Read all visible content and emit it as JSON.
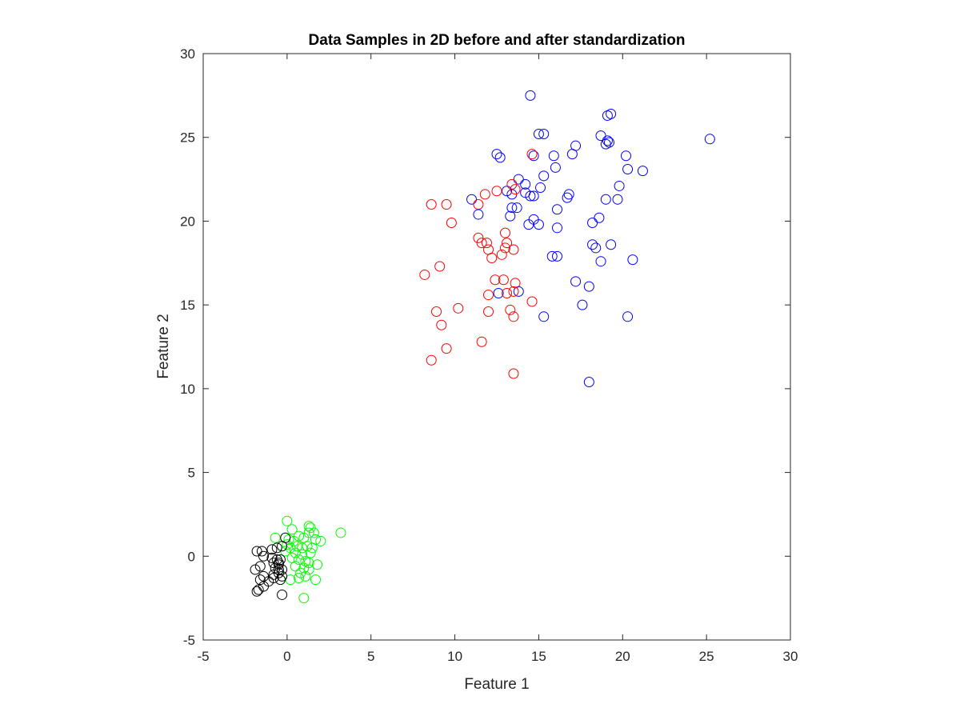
{
  "chart_data": {
    "type": "scatter",
    "title": "Data Samples in 2D before and after standardization",
    "xlabel": "Feature 1",
    "ylabel": "Feature 2",
    "xlim": [
      -5,
      30
    ],
    "ylim": [
      -5,
      30
    ],
    "xticks": [
      -5,
      0,
      5,
      10,
      15,
      20,
      25,
      30
    ],
    "yticks": [
      -5,
      0,
      5,
      10,
      15,
      20,
      25,
      30
    ],
    "grid": false,
    "legend": "none",
    "marker": "open-circle",
    "series": [
      {
        "color": "#0000ff",
        "points": [
          [
            14.5,
            27.5
          ],
          [
            12.5,
            24.0
          ],
          [
            12.7,
            23.8
          ],
          [
            14.7,
            23.9
          ],
          [
            15.0,
            25.2
          ],
          [
            15.3,
            25.2
          ],
          [
            15.9,
            23.9
          ],
          [
            16.0,
            23.2
          ],
          [
            15.3,
            22.7
          ],
          [
            13.8,
            22.5
          ],
          [
            13.1,
            21.8
          ],
          [
            13.4,
            21.6
          ],
          [
            14.2,
            22.2
          ],
          [
            14.2,
            21.7
          ],
          [
            14.5,
            21.5
          ],
          [
            14.7,
            21.5
          ],
          [
            15.1,
            22.0
          ],
          [
            16.7,
            21.4
          ],
          [
            16.8,
            21.6
          ],
          [
            11.0,
            21.3
          ],
          [
            11.4,
            20.4
          ],
          [
            13.7,
            20.8
          ],
          [
            13.4,
            20.8
          ],
          [
            13.3,
            20.3
          ],
          [
            14.7,
            20.1
          ],
          [
            14.4,
            19.8
          ],
          [
            15.0,
            19.8
          ],
          [
            16.1,
            20.7
          ],
          [
            16.1,
            19.6
          ],
          [
            15.8,
            17.9
          ],
          [
            16.1,
            17.9
          ],
          [
            13.8,
            15.8
          ],
          [
            12.6,
            15.7
          ],
          [
            15.3,
            14.3
          ],
          [
            17.2,
            16.4
          ],
          [
            17.6,
            15.0
          ],
          [
            18.0,
            16.1
          ],
          [
            17.0,
            24.0
          ],
          [
            17.2,
            24.5
          ],
          [
            18.7,
            25.1
          ],
          [
            19.2,
            24.7
          ],
          [
            19.1,
            24.8
          ],
          [
            19.0,
            24.6
          ],
          [
            19.1,
            26.3
          ],
          [
            19.3,
            26.4
          ],
          [
            20.2,
            23.9
          ],
          [
            20.3,
            23.1
          ],
          [
            21.2,
            23.0
          ],
          [
            19.8,
            22.1
          ],
          [
            19.0,
            21.3
          ],
          [
            19.7,
            21.3
          ],
          [
            18.6,
            20.2
          ],
          [
            18.2,
            19.9
          ],
          [
            18.2,
            18.6
          ],
          [
            18.4,
            18.4
          ],
          [
            19.3,
            18.6
          ],
          [
            18.7,
            17.6
          ],
          [
            20.6,
            17.7
          ],
          [
            20.3,
            14.3
          ],
          [
            18.0,
            10.4
          ],
          [
            25.2,
            24.9
          ]
        ]
      },
      {
        "color": "#ff0000",
        "points": [
          [
            8.6,
            21.0
          ],
          [
            9.5,
            21.0
          ],
          [
            9.8,
            19.9
          ],
          [
            11.4,
            21.0
          ],
          [
            11.8,
            21.6
          ],
          [
            12.5,
            21.8
          ],
          [
            13.4,
            22.2
          ],
          [
            14.6,
            24.0
          ],
          [
            13.6,
            21.9
          ],
          [
            11.4,
            19.0
          ],
          [
            11.6,
            18.7
          ],
          [
            11.9,
            18.7
          ],
          [
            12.0,
            18.3
          ],
          [
            12.2,
            17.8
          ],
          [
            12.8,
            18.0
          ],
          [
            13.0,
            19.3
          ],
          [
            13.1,
            18.7
          ],
          [
            13.0,
            18.4
          ],
          [
            13.5,
            18.3
          ],
          [
            9.1,
            17.3
          ],
          [
            8.2,
            16.8
          ],
          [
            12.4,
            16.5
          ],
          [
            12.9,
            16.5
          ],
          [
            13.6,
            16.3
          ],
          [
            12.0,
            15.6
          ],
          [
            13.1,
            15.7
          ],
          [
            13.5,
            15.8
          ],
          [
            14.6,
            15.2
          ],
          [
            10.2,
            14.8
          ],
          [
            8.9,
            14.6
          ],
          [
            12.0,
            14.6
          ],
          [
            13.3,
            14.7
          ],
          [
            13.5,
            14.3
          ],
          [
            9.2,
            13.8
          ],
          [
            9.5,
            12.4
          ],
          [
            11.6,
            12.8
          ],
          [
            8.6,
            11.7
          ],
          [
            13.5,
            10.9
          ]
        ]
      },
      {
        "color": "#00ff00",
        "points": [
          [
            0.0,
            2.1
          ],
          [
            0.3,
            1.6
          ],
          [
            1.3,
            1.8
          ],
          [
            1.4,
            1.7
          ],
          [
            1.3,
            1.4
          ],
          [
            1.6,
            1.4
          ],
          [
            3.2,
            1.4
          ],
          [
            0.7,
            1.2
          ],
          [
            1.0,
            1.1
          ],
          [
            1.7,
            1.0
          ],
          [
            2.0,
            0.9
          ],
          [
            -0.7,
            1.1
          ],
          [
            0.1,
            1.0
          ],
          [
            0.4,
            0.9
          ],
          [
            0.2,
            0.5
          ],
          [
            0.6,
            0.6
          ],
          [
            0.9,
            0.5
          ],
          [
            1.2,
            0.6
          ],
          [
            1.5,
            0.5
          ],
          [
            0.5,
            0.2
          ],
          [
            0.9,
            0.1
          ],
          [
            1.4,
            0.2
          ],
          [
            0.3,
            -0.1
          ],
          [
            0.7,
            -0.2
          ],
          [
            1.1,
            -0.3
          ],
          [
            1.3,
            -0.4
          ],
          [
            1.8,
            -0.5
          ],
          [
            0.5,
            -0.6
          ],
          [
            1.0,
            -0.7
          ],
          [
            1.3,
            -0.8
          ],
          [
            0.8,
            -1.0
          ],
          [
            1.1,
            -1.2
          ],
          [
            0.2,
            -1.4
          ],
          [
            0.7,
            -1.3
          ],
          [
            1.7,
            -1.4
          ],
          [
            1.0,
            -2.5
          ],
          [
            -0.1,
            0.3
          ],
          [
            0.0,
            0.7
          ]
        ]
      },
      {
        "color": "#000000",
        "points": [
          [
            -0.1,
            1.1
          ],
          [
            -0.6,
            0.5
          ],
          [
            -0.9,
            0.4
          ],
          [
            -1.8,
            0.3
          ],
          [
            -1.5,
            0.3
          ],
          [
            -0.3,
            0.6
          ],
          [
            -1.4,
            0.0
          ],
          [
            -0.9,
            -0.1
          ],
          [
            -0.6,
            -0.2
          ],
          [
            -0.4,
            -0.2
          ],
          [
            -0.8,
            -0.4
          ],
          [
            -0.5,
            -0.4
          ],
          [
            -1.6,
            -0.6
          ],
          [
            -1.9,
            -0.8
          ],
          [
            -0.7,
            -0.7
          ],
          [
            -0.5,
            -0.8
          ],
          [
            -0.3,
            -0.8
          ],
          [
            -0.8,
            -1.1
          ],
          [
            -0.5,
            -1.0
          ],
          [
            -0.3,
            -1.2
          ],
          [
            -1.4,
            -1.2
          ],
          [
            -1.6,
            -1.4
          ],
          [
            -1.1,
            -1.5
          ],
          [
            -0.8,
            -1.3
          ],
          [
            -0.4,
            -1.4
          ],
          [
            -1.4,
            -1.8
          ],
          [
            -1.7,
            -2.0
          ],
          [
            -1.8,
            -2.1
          ],
          [
            -0.3,
            -2.3
          ],
          [
            -0.5,
            -0.5
          ]
        ]
      }
    ]
  }
}
